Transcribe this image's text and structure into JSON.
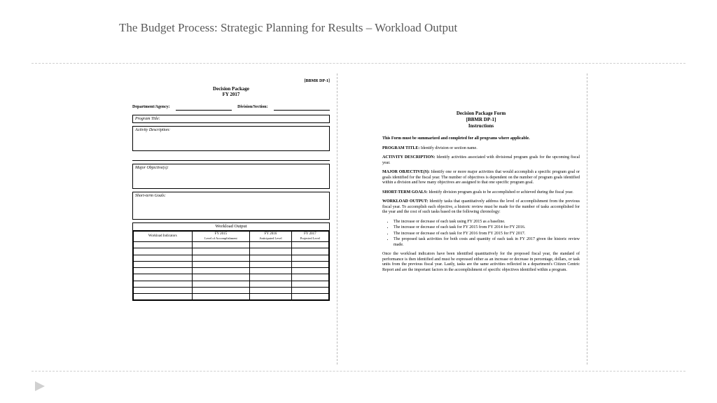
{
  "slide": {
    "title": "The Budget Process:  Strategic Planning for Results – Workload  Output"
  },
  "colors": {
    "title_color": "#595959",
    "divider_color": "#cfcfcf",
    "play_icon_fill": "#d0d0d0",
    "text_color": "#000000",
    "background": "#ffffff"
  },
  "left_form": {
    "code": "[BBMR DP-1]",
    "title": "Decision Package",
    "subtitle": "FY 2017",
    "dept_label": "Department/Agency:",
    "div_label": "Division/Section:",
    "program_title_label": "Program Title:",
    "activity_label": "Activity Description:",
    "major_obj_label": "Major Objective(s):",
    "short_goals_label": "Short-term Goals:",
    "workload_title": "Workload Output",
    "table": {
      "col1": "Workload Indicators",
      "col2_y": "FY 2015",
      "col2_s": "Level of Accomplishment",
      "col3_y": "FY 2016",
      "col3_s": "Anticipated Level",
      "col4_y": "FY 2017",
      "col4_s": "Projected Level",
      "blank_rows": 9
    }
  },
  "right_form": {
    "header_l1": "Decision Package Form",
    "header_l2": "[BBMR DP-1]",
    "header_l3": "Instructions",
    "intro": "This Form must be summarized and completed for all programs where applicable.",
    "p1_b": "PROGRAM TITLE:",
    "p1": " Identify division or section name.",
    "p2_b": "ACTIVITY DESCRIPTION:",
    "p2": " Identify activities associated with divisional program goals for the upcoming fiscal year.",
    "p3_b": "MAJOR OBJECTIVE(S):",
    "p3": " Identify one or more major activities that would accomplish a specific program goal or goals identified for the fiscal year. The number of objectives is dependent on the number of program goals identified within a division and how many objectives are assigned to that one specific program goal.",
    "p4_b": "SHORT-TERM GOALS:",
    "p4": " Identify division program goals to be accomplished or achieved during the fiscal year.",
    "p5_b": "WORKLOAD OUTPUT:",
    "p5": " Identify tasks that quantitatively address the level of accomplishment from the previous fiscal year. To accomplish each objective, a historic review must be made for the number of tasks accomplished for the year and the cost of such tasks based on the following chronology:",
    "bullets": [
      "The increase or decrease of each task using FY 2015 as a baseline.",
      "The increase or decrease of each task for FY 2015 from FY 2014 for FY 2016.",
      "The increase or decrease of each task for FY 2016 from FY 2015 for FY 2017.",
      "The proposed task activities for both costs and quantity of each task in FY 2017 given the historic review made."
    ],
    "closing": "Once the workload indicators have been identified quantitatively for the proposed fiscal year, the standard of performance is then identified and must be expressed either as an increase or decrease in percentage, dollars, or task units from the previous fiscal year. Lastly, tasks are the same activities reflected in a department's Citizen Centric Report and are the important factors in the accomplishment of specific objectives identified within a program."
  }
}
